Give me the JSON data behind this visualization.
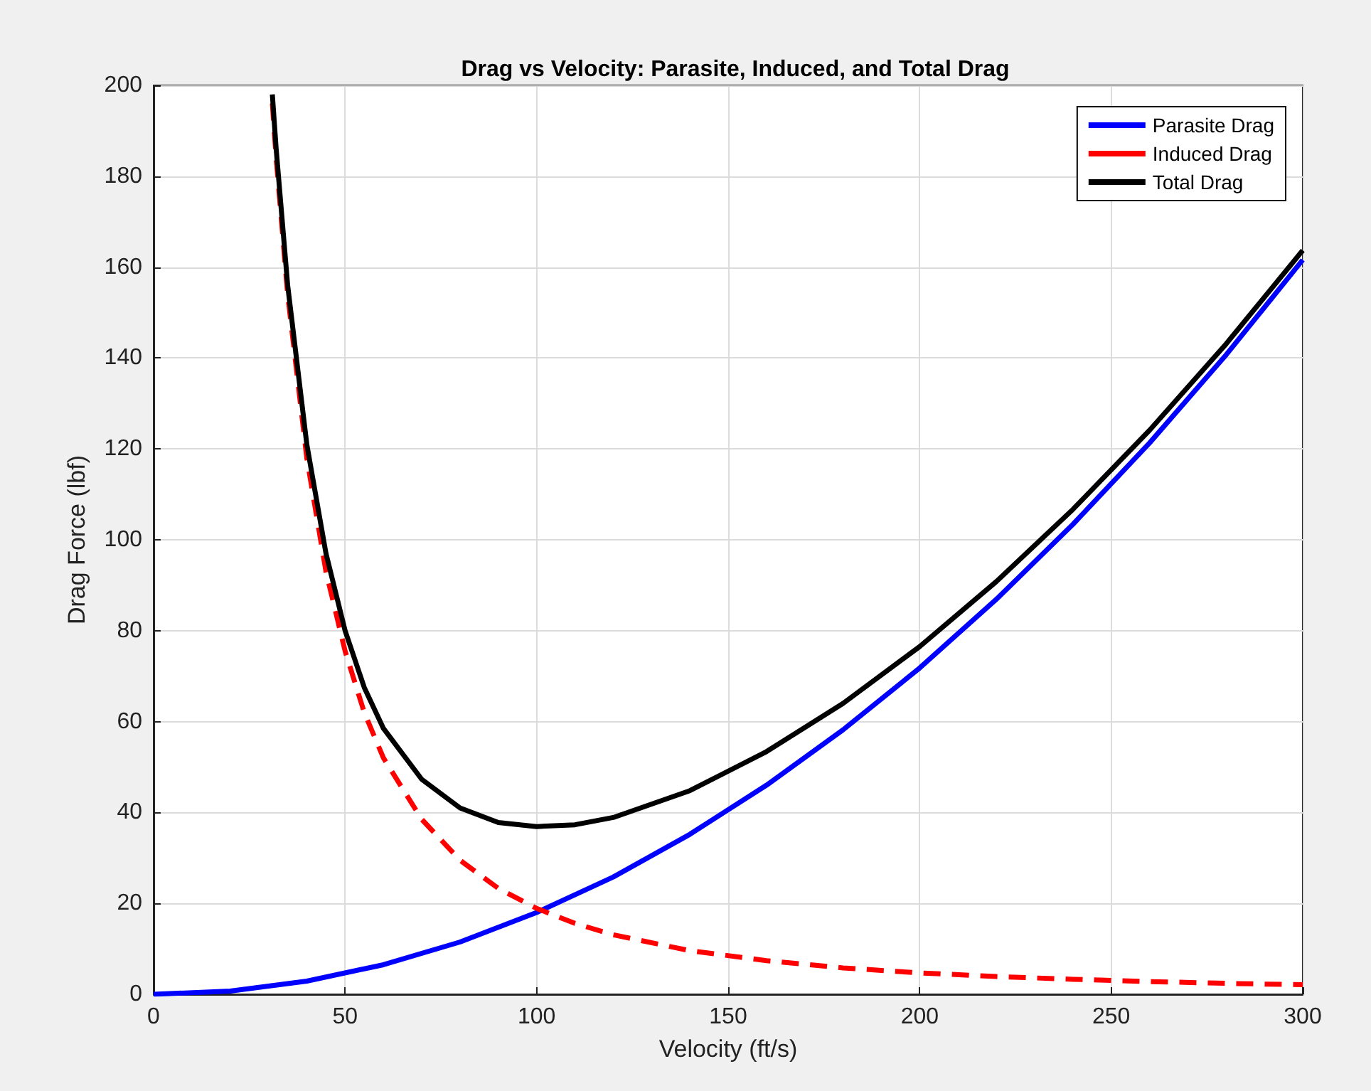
{
  "chart_data": {
    "type": "line",
    "title": "Drag vs Velocity: Parasite, Induced, and Total Drag",
    "xlabel": "Velocity (ft/s)",
    "ylabel": "Drag Force (lbf)",
    "xlim": [
      0,
      300
    ],
    "xticks": [
      0,
      50,
      100,
      150,
      200,
      250,
      300
    ],
    "ylim": [
      0,
      200
    ],
    "yticks": [
      0,
      20,
      40,
      60,
      80,
      100,
      120,
      140,
      160,
      180,
      200
    ],
    "grid": true,
    "legend": "top right",
    "marker": "none",
    "series": [
      {
        "name": "Parasite Drag",
        "color": "#0000ff",
        "line_style": "solid",
        "x": [
          0,
          20,
          40,
          60,
          80,
          100,
          120,
          140,
          160,
          180,
          200,
          220,
          240,
          260,
          280,
          300
        ],
        "values": [
          0,
          0.7,
          2.9,
          6.5,
          11.5,
          18,
          25.8,
          35.2,
          46,
          58.2,
          71.8,
          86.9,
          103.4,
          121.3,
          140.7,
          161.6
        ]
      },
      {
        "name": "Induced Drag",
        "color": "#ff0000",
        "line_style": "dashed",
        "x": [
          31,
          32,
          35,
          40,
          45,
          50,
          55,
          60,
          70,
          80,
          90,
          100,
          110,
          120,
          140,
          160,
          180,
          200,
          220,
          240,
          260,
          280,
          300
        ],
        "values": [
          196,
          184,
          154,
          118,
          93,
          75.5,
          62,
          52,
          38.5,
          29.5,
          23.3,
          18.9,
          15.6,
          13.1,
          9.6,
          7.4,
          5.8,
          4.7,
          3.9,
          3.3,
          2.8,
          2.4,
          2.1
        ]
      },
      {
        "name": "Total Drag",
        "color": "#000000",
        "line_style": "solid",
        "x": [
          31,
          32,
          35,
          40,
          45,
          50,
          55,
          60,
          70,
          80,
          90,
          100,
          110,
          120,
          140,
          160,
          180,
          200,
          220,
          240,
          260,
          280,
          300
        ],
        "values": [
          198,
          186,
          156,
          121,
          97,
          80,
          67.5,
          58.5,
          47.3,
          41,
          37.8,
          36.9,
          37.3,
          38.9,
          44.8,
          53.4,
          64,
          76.5,
          90.8,
          106.7,
          124.1,
          143.1,
          163.7
        ]
      }
    ]
  }
}
